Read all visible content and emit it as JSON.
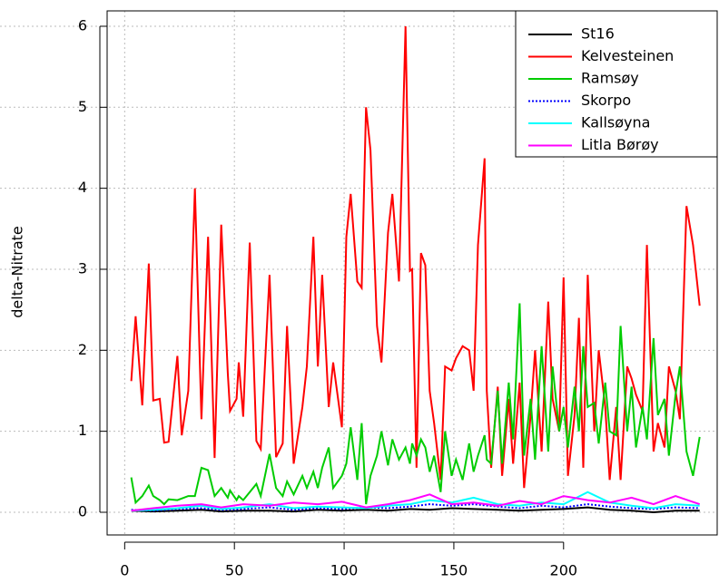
{
  "chart_data": {
    "type": "line",
    "y_label": "delta-Nitrate",
    "xlim": [
      -8,
      270
    ],
    "ylim": [
      -0.28,
      6.19
    ],
    "xticks": [
      0,
      50,
      100,
      150,
      200
    ],
    "yticks": [
      0,
      1,
      2,
      3,
      4,
      5,
      6
    ],
    "grid": true,
    "legend": "top-right",
    "series": [
      {
        "name": "St16",
        "color": "#000000",
        "style": "solid",
        "x": [
          3,
          13,
          24,
          35,
          44,
          54,
          66,
          77,
          88,
          99,
          110,
          120,
          130,
          139,
          149,
          159,
          170,
          180,
          190,
          200,
          211,
          221,
          231,
          241,
          251,
          262
        ],
        "values": [
          0.02,
          0.01,
          0.02,
          0.03,
          0.01,
          0.02,
          0.02,
          0.01,
          0.03,
          0.02,
          0.03,
          0.02,
          0.04,
          0.03,
          0.05,
          0.04,
          0.03,
          0.02,
          0.03,
          0.04,
          0.06,
          0.03,
          0.02,
          0.0,
          0.02,
          0.02
        ]
      },
      {
        "name": "Kelvesteinen",
        "color": "#ff0000",
        "style": "solid",
        "x": [
          3,
          5,
          8,
          11,
          13,
          16,
          18,
          20,
          24,
          26,
          29,
          32,
          35,
          38,
          41,
          44,
          47,
          48,
          51,
          52,
          54,
          57,
          60,
          62,
          66,
          69,
          72,
          74,
          77,
          81,
          83,
          86,
          88,
          90,
          93,
          95,
          99,
          101,
          103,
          106,
          108,
          110,
          112,
          115,
          117,
          120,
          122,
          125,
          128,
          130,
          131,
          133,
          135,
          137,
          139,
          141,
          144,
          146,
          149,
          151,
          154,
          157,
          159,
          161,
          164,
          165,
          167,
          170,
          172,
          175,
          177,
          180,
          182,
          185,
          187,
          190,
          193,
          195,
          198,
          200,
          202,
          205,
          207,
          209,
          211,
          214,
          216,
          219,
          221,
          224,
          226,
          229,
          231,
          233,
          236,
          238,
          241,
          243,
          246,
          248,
          251,
          253,
          256,
          259,
          262
        ],
        "values": [
          1.62,
          2.42,
          1.32,
          3.07,
          1.38,
          1.4,
          0.86,
          0.87,
          1.93,
          0.95,
          1.5,
          4.0,
          1.15,
          3.4,
          0.67,
          3.55,
          1.72,
          1.25,
          1.4,
          1.85,
          1.18,
          3.33,
          0.88,
          0.78,
          2.93,
          0.68,
          0.85,
          2.3,
          0.6,
          1.3,
          1.8,
          3.4,
          1.8,
          2.93,
          1.3,
          1.85,
          1.05,
          3.4,
          3.93,
          2.85,
          2.77,
          5.0,
          4.47,
          2.3,
          1.85,
          3.45,
          3.93,
          2.85,
          6.0,
          2.98,
          3.0,
          0.55,
          3.2,
          3.05,
          1.5,
          1.1,
          0.4,
          1.8,
          1.75,
          1.9,
          2.05,
          2.0,
          1.5,
          3.3,
          4.37,
          1.5,
          0.55,
          1.55,
          0.45,
          1.4,
          0.6,
          1.6,
          0.3,
          1.2,
          2.0,
          0.75,
          2.6,
          1.4,
          1.0,
          2.9,
          0.45,
          1.2,
          2.4,
          0.55,
          2.93,
          1.0,
          2.0,
          1.3,
          0.4,
          1.3,
          0.4,
          1.8,
          1.65,
          1.45,
          1.25,
          3.3,
          0.75,
          1.1,
          0.8,
          1.8,
          1.5,
          1.15,
          3.78,
          3.3,
          2.55
        ]
      },
      {
        "name": "Ramsøy",
        "color": "#00cc00",
        "style": "solid",
        "x": [
          3,
          5,
          8,
          11,
          13,
          16,
          18,
          20,
          24,
          26,
          29,
          32,
          35,
          38,
          41,
          44,
          47,
          48,
          51,
          52,
          54,
          57,
          60,
          62,
          66,
          69,
          72,
          74,
          77,
          81,
          83,
          86,
          88,
          90,
          93,
          95,
          99,
          101,
          103,
          106,
          108,
          110,
          112,
          115,
          117,
          120,
          122,
          125,
          128,
          130,
          131,
          133,
          135,
          137,
          139,
          141,
          144,
          146,
          149,
          151,
          154,
          157,
          159,
          161,
          164,
          165,
          167,
          170,
          172,
          175,
          177,
          180,
          182,
          185,
          187,
          190,
          193,
          195,
          198,
          200,
          202,
          205,
          207,
          209,
          211,
          214,
          216,
          219,
          221,
          224,
          226,
          229,
          231,
          233,
          236,
          238,
          241,
          243,
          246,
          248,
          251,
          253,
          256,
          259,
          262
        ],
        "values": [
          0.43,
          0.12,
          0.2,
          0.33,
          0.2,
          0.15,
          0.1,
          0.16,
          0.15,
          0.17,
          0.2,
          0.2,
          0.55,
          0.52,
          0.2,
          0.3,
          0.18,
          0.27,
          0.15,
          0.2,
          0.15,
          0.25,
          0.35,
          0.2,
          0.72,
          0.3,
          0.2,
          0.38,
          0.22,
          0.45,
          0.3,
          0.5,
          0.3,
          0.55,
          0.8,
          0.3,
          0.45,
          0.6,
          1.05,
          0.4,
          1.1,
          0.1,
          0.45,
          0.7,
          1.0,
          0.58,
          0.9,
          0.65,
          0.8,
          0.6,
          0.85,
          0.7,
          0.9,
          0.8,
          0.5,
          0.7,
          0.25,
          1.0,
          0.45,
          0.65,
          0.4,
          0.85,
          0.5,
          0.7,
          0.95,
          0.65,
          0.6,
          1.5,
          0.6,
          1.6,
          0.9,
          2.58,
          0.7,
          1.4,
          0.65,
          2.05,
          0.75,
          1.8,
          1.0,
          1.3,
          0.8,
          1.55,
          1.0,
          2.05,
          1.3,
          1.35,
          0.85,
          1.6,
          1.0,
          0.95,
          2.3,
          1.0,
          1.55,
          0.8,
          1.3,
          0.9,
          2.15,
          1.2,
          1.4,
          0.7,
          1.45,
          1.8,
          0.75,
          0.45,
          0.93
        ]
      },
      {
        "name": "Skorpo",
        "color": "#0000ff",
        "style": "dotted",
        "x": [
          3,
          13,
          24,
          35,
          44,
          54,
          66,
          77,
          88,
          99,
          110,
          120,
          130,
          139,
          149,
          159,
          170,
          180,
          190,
          200,
          211,
          221,
          231,
          241,
          251,
          262
        ],
        "values": [
          0.03,
          0.02,
          0.04,
          0.05,
          0.03,
          0.04,
          0.06,
          0.03,
          0.05,
          0.04,
          0.06,
          0.05,
          0.07,
          0.1,
          0.08,
          0.1,
          0.07,
          0.05,
          0.08,
          0.06,
          0.1,
          0.07,
          0.05,
          0.04,
          0.06,
          0.05
        ]
      },
      {
        "name": "Kallsøyna",
        "color": "#00ffff",
        "style": "solid",
        "x": [
          3,
          13,
          24,
          35,
          44,
          54,
          66,
          77,
          88,
          99,
          110,
          120,
          130,
          139,
          149,
          159,
          170,
          180,
          190,
          200,
          211,
          221,
          231,
          241,
          251,
          262
        ],
        "values": [
          0.02,
          0.03,
          0.05,
          0.08,
          0.04,
          0.06,
          0.1,
          0.05,
          0.07,
          0.06,
          0.05,
          0.08,
          0.1,
          0.15,
          0.12,
          0.18,
          0.1,
          0.08,
          0.12,
          0.1,
          0.25,
          0.12,
          0.08,
          0.05,
          0.1,
          0.08
        ]
      },
      {
        "name": "Litla Børøy",
        "color": "#ff00ff",
        "style": "solid",
        "x": [
          3,
          13,
          24,
          35,
          44,
          54,
          66,
          77,
          88,
          99,
          110,
          120,
          130,
          139,
          149,
          159,
          170,
          180,
          190,
          200,
          211,
          221,
          231,
          241,
          251,
          262
        ],
        "values": [
          0.02,
          0.05,
          0.08,
          0.1,
          0.06,
          0.1,
          0.08,
          0.12,
          0.1,
          0.13,
          0.06,
          0.1,
          0.15,
          0.22,
          0.1,
          0.12,
          0.08,
          0.14,
          0.1,
          0.2,
          0.15,
          0.12,
          0.18,
          0.1,
          0.2,
          0.1
        ]
      }
    ]
  }
}
